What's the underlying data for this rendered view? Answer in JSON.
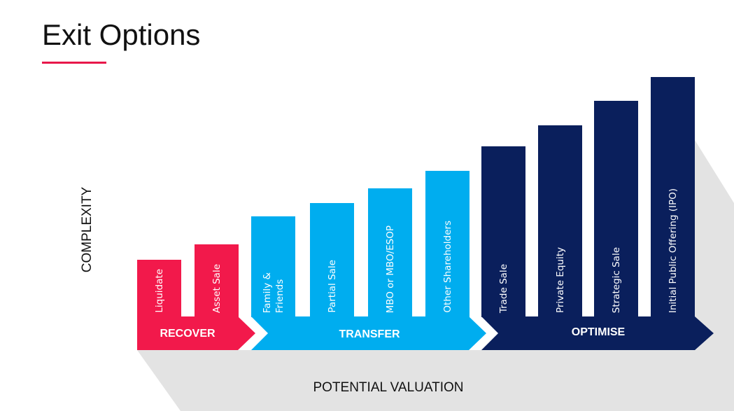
{
  "title": "Exit Options",
  "y_axis_label": "COMPLEXITY",
  "x_axis_label": "POTENTIAL VALUATION",
  "groups": [
    {
      "name": "RECOVER",
      "options": [
        {
          "lines": [
            "Liquidate"
          ]
        },
        {
          "lines": [
            "Asset Sale"
          ]
        }
      ]
    },
    {
      "name": "TRANSFER",
      "options": [
        {
          "lines": [
            "Family &",
            "Friends"
          ]
        },
        {
          "lines": [
            "Partial Sale"
          ]
        },
        {
          "lines": [
            "MBO or MBO/ESOP"
          ]
        },
        {
          "lines": [
            "Other Shareholders"
          ]
        }
      ]
    },
    {
      "name": "OPTIMISE",
      "options": [
        {
          "lines": [
            "Trade Sale"
          ]
        },
        {
          "lines": [
            "Private Equity"
          ]
        },
        {
          "lines": [
            "Strategic Sale"
          ]
        },
        {
          "lines": [
            "Initial Public Offering (IPO)"
          ]
        }
      ]
    }
  ]
}
